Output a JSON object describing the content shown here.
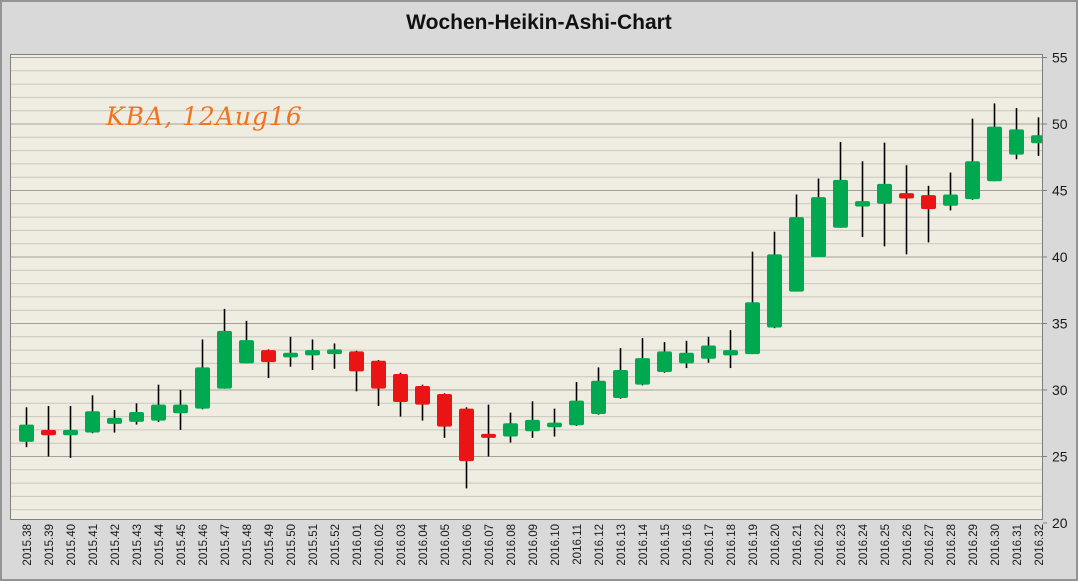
{
  "chart": {
    "title": "Wochen-Heikin-Ashi-Chart",
    "annotation": "KBA, 12Aug16",
    "colors": {
      "up": "#00a94f",
      "down": "#ea1414",
      "wick": "#000000",
      "plot_bg": "#efede2",
      "outer_bg": "#d9d9d9",
      "grid_minor": "#c9c7bd",
      "grid_major": "#a3a199",
      "plot_border": "#7f7f7f",
      "annotation_text": "#f1731f",
      "title_text": "#111111",
      "axis_text": "#1a1a1a"
    }
  },
  "chart_data": {
    "type": "candlestick",
    "subtype": "heikin-ashi-weekly",
    "title": "Wochen-Heikin-Ashi-Chart",
    "annotation": "KBA, 12Aug16",
    "legend": "none",
    "grid": "horizontal minor every 1 unit, major every 5 units",
    "y_axis": {
      "side": "right",
      "min": 20,
      "max": 55,
      "tick_interval": 5,
      "ticks": [
        20,
        25,
        30,
        35,
        40,
        45,
        50,
        55
      ]
    },
    "x_axis": {
      "label_rotation": -90,
      "categories_are_weeks": true
    },
    "candles": [
      {
        "t": "2015.38",
        "o": 26.1,
        "h": 28.7,
        "l": 25.7,
        "c": 27.4
      },
      {
        "t": "2015.39",
        "o": 27.0,
        "h": 28.8,
        "l": 25.0,
        "c": 26.6
      },
      {
        "t": "2015.40",
        "o": 26.6,
        "h": 28.8,
        "l": 24.9,
        "c": 27.0
      },
      {
        "t": "2015.41",
        "o": 26.8,
        "h": 29.6,
        "l": 26.75,
        "c": 28.4
      },
      {
        "t": "2015.42",
        "o": 27.45,
        "h": 28.5,
        "l": 26.8,
        "c": 27.9
      },
      {
        "t": "2015.43",
        "o": 27.6,
        "h": 29.0,
        "l": 27.4,
        "c": 28.35
      },
      {
        "t": "2015.44",
        "o": 27.7,
        "h": 30.4,
        "l": 27.6,
        "c": 28.9
      },
      {
        "t": "2015.45",
        "o": 28.25,
        "h": 30.0,
        "l": 27.0,
        "c": 28.9
      },
      {
        "t": "2015.46",
        "o": 28.6,
        "h": 33.8,
        "l": 28.55,
        "c": 31.7
      },
      {
        "t": "2015.47",
        "o": 30.1,
        "h": 36.1,
        "l": 30.1,
        "c": 34.45
      },
      {
        "t": "2015.48",
        "o": 32.0,
        "h": 35.2,
        "l": 32.0,
        "c": 33.75
      },
      {
        "t": "2015.49",
        "o": 33.0,
        "h": 33.05,
        "l": 30.9,
        "c": 32.1
      },
      {
        "t": "2015.50",
        "o": 32.45,
        "h": 34.0,
        "l": 31.75,
        "c": 32.8
      },
      {
        "t": "2015.51",
        "o": 32.6,
        "h": 33.8,
        "l": 31.5,
        "c": 33.0
      },
      {
        "t": "2015.52",
        "o": 32.7,
        "h": 33.5,
        "l": 31.6,
        "c": 33.05
      },
      {
        "t": "2016.01",
        "o": 32.9,
        "h": 32.95,
        "l": 29.9,
        "c": 31.4
      },
      {
        "t": "2016.02",
        "o": 32.2,
        "h": 32.25,
        "l": 28.8,
        "c": 30.1
      },
      {
        "t": "2016.03",
        "o": 31.2,
        "h": 31.3,
        "l": 28.0,
        "c": 29.1
      },
      {
        "t": "2016.04",
        "o": 30.3,
        "h": 30.4,
        "l": 27.7,
        "c": 28.9
      },
      {
        "t": "2016.05",
        "o": 29.7,
        "h": 29.75,
        "l": 26.4,
        "c": 27.25
      },
      {
        "t": "2016.06",
        "o": 28.6,
        "h": 28.7,
        "l": 22.6,
        "c": 24.65
      },
      {
        "t": "2016.07",
        "o": 26.7,
        "h": 28.9,
        "l": 25.0,
        "c": 26.4
      },
      {
        "t": "2016.08",
        "o": 26.5,
        "h": 28.3,
        "l": 26.05,
        "c": 27.5
      },
      {
        "t": "2016.09",
        "o": 26.9,
        "h": 29.15,
        "l": 26.4,
        "c": 27.75
      },
      {
        "t": "2016.10",
        "o": 27.2,
        "h": 28.6,
        "l": 26.5,
        "c": 27.55
      },
      {
        "t": "2016.11",
        "o": 27.35,
        "h": 30.6,
        "l": 27.3,
        "c": 29.2
      },
      {
        "t": "2016.12",
        "o": 28.2,
        "h": 31.7,
        "l": 28.15,
        "c": 30.7
      },
      {
        "t": "2016.13",
        "o": 29.4,
        "h": 33.15,
        "l": 29.35,
        "c": 31.5
      },
      {
        "t": "2016.14",
        "o": 30.4,
        "h": 33.9,
        "l": 30.35,
        "c": 32.4
      },
      {
        "t": "2016.15",
        "o": 31.35,
        "h": 33.6,
        "l": 31.3,
        "c": 32.9
      },
      {
        "t": "2016.16",
        "o": 32.0,
        "h": 33.7,
        "l": 31.65,
        "c": 32.8
      },
      {
        "t": "2016.17",
        "o": 32.35,
        "h": 34.0,
        "l": 32.05,
        "c": 33.35
      },
      {
        "t": "2016.18",
        "o": 32.6,
        "h": 34.5,
        "l": 31.65,
        "c": 33.0
      },
      {
        "t": "2016.19",
        "o": 32.7,
        "h": 40.4,
        "l": 32.7,
        "c": 36.6
      },
      {
        "t": "2016.20",
        "o": 34.7,
        "h": 41.9,
        "l": 34.65,
        "c": 40.2
      },
      {
        "t": "2016.21",
        "o": 37.4,
        "h": 44.7,
        "l": 37.4,
        "c": 43.0
      },
      {
        "t": "2016.22",
        "o": 40.0,
        "h": 45.9,
        "l": 40.0,
        "c": 44.5
      },
      {
        "t": "2016.23",
        "o": 42.2,
        "h": 48.65,
        "l": 42.2,
        "c": 45.8
      },
      {
        "t": "2016.24",
        "o": 43.8,
        "h": 47.2,
        "l": 41.5,
        "c": 44.2
      },
      {
        "t": "2016.25",
        "o": 44.0,
        "h": 48.6,
        "l": 40.8,
        "c": 45.5
      },
      {
        "t": "2016.26",
        "o": 44.8,
        "h": 46.9,
        "l": 40.2,
        "c": 44.4
      },
      {
        "t": "2016.27",
        "o": 44.65,
        "h": 45.35,
        "l": 41.1,
        "c": 43.6
      },
      {
        "t": "2016.28",
        "o": 43.85,
        "h": 46.35,
        "l": 43.5,
        "c": 44.7
      },
      {
        "t": "2016.29",
        "o": 44.35,
        "h": 50.4,
        "l": 44.3,
        "c": 47.2
      },
      {
        "t": "2016.30",
        "o": 45.7,
        "h": 51.55,
        "l": 45.7,
        "c": 49.8
      },
      {
        "t": "2016.31",
        "o": 47.7,
        "h": 51.2,
        "l": 47.35,
        "c": 49.6
      },
      {
        "t": "2016.32",
        "o": 48.55,
        "h": 50.5,
        "l": 47.6,
        "c": 49.15
      }
    ]
  }
}
